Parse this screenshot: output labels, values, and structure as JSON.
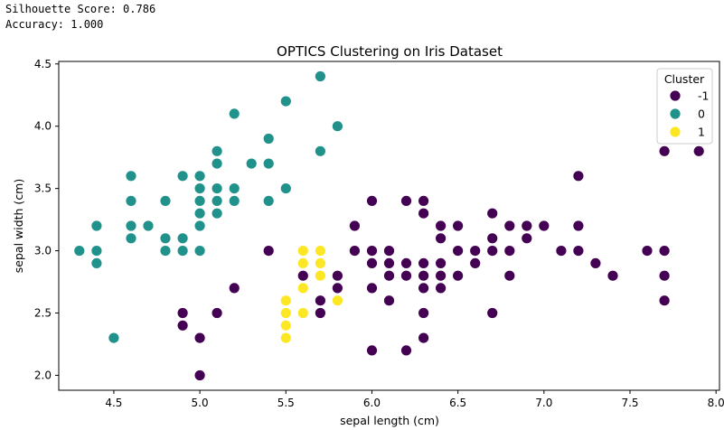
{
  "console": {
    "line1": "Silhouette Score: 0.786",
    "line2": "Accuracy: 1.000"
  },
  "chart_data": {
    "type": "scatter",
    "title": "OPTICS Clustering on Iris Dataset",
    "xlabel": "sepal length (cm)",
    "ylabel": "sepal width (cm)",
    "xlim": [
      4.18,
      8.02
    ],
    "ylim": [
      1.88,
      4.52
    ],
    "xticks": [
      "4.5",
      "5.0",
      "5.5",
      "6.0",
      "6.5",
      "7.0",
      "7.5",
      "8.0"
    ],
    "yticks": [
      "2.0",
      "2.5",
      "3.0",
      "3.5",
      "4.0",
      "4.5"
    ],
    "grid": false,
    "legend": {
      "title": "Cluster",
      "placement": "top-right"
    },
    "series": [
      {
        "name": "-1",
        "color": "#440154",
        "points": [
          [
            7.7,
            3.8
          ],
          [
            7.9,
            3.8
          ],
          [
            7.2,
            3.6
          ],
          [
            6.0,
            3.4
          ],
          [
            6.2,
            3.4
          ],
          [
            6.3,
            3.4
          ],
          [
            6.3,
            3.3
          ],
          [
            6.7,
            3.3
          ],
          [
            5.9,
            3.2
          ],
          [
            6.4,
            3.2
          ],
          [
            6.5,
            3.2
          ],
          [
            6.8,
            3.2
          ],
          [
            6.9,
            3.2
          ],
          [
            7.0,
            3.2
          ],
          [
            7.2,
            3.2
          ],
          [
            6.7,
            3.1
          ],
          [
            6.4,
            3.1
          ],
          [
            6.9,
            3.1
          ],
          [
            5.4,
            3.0
          ],
          [
            5.9,
            3.0
          ],
          [
            6.0,
            3.0
          ],
          [
            6.1,
            3.0
          ],
          [
            6.5,
            3.0
          ],
          [
            6.6,
            3.0
          ],
          [
            6.7,
            3.0
          ],
          [
            6.8,
            3.0
          ],
          [
            7.1,
            3.0
          ],
          [
            7.2,
            3.0
          ],
          [
            7.6,
            3.0
          ],
          [
            7.7,
            3.0
          ],
          [
            6.0,
            2.9
          ],
          [
            6.1,
            2.9
          ],
          [
            6.2,
            2.9
          ],
          [
            6.3,
            2.9
          ],
          [
            6.4,
            2.9
          ],
          [
            6.6,
            2.9
          ],
          [
            7.3,
            2.9
          ],
          [
            5.6,
            2.9
          ],
          [
            5.7,
            2.9
          ],
          [
            5.8,
            2.8
          ],
          [
            6.1,
            2.8
          ],
          [
            6.2,
            2.8
          ],
          [
            6.3,
            2.8
          ],
          [
            6.4,
            2.8
          ],
          [
            6.5,
            2.8
          ],
          [
            6.8,
            2.8
          ],
          [
            7.4,
            2.8
          ],
          [
            7.7,
            2.8
          ],
          [
            5.6,
            2.8
          ],
          [
            5.2,
            2.7
          ],
          [
            5.8,
            2.7
          ],
          [
            6.0,
            2.7
          ],
          [
            6.3,
            2.7
          ],
          [
            6.4,
            2.7
          ],
          [
            5.6,
            3.0
          ],
          [
            5.7,
            2.6
          ],
          [
            6.1,
            2.6
          ],
          [
            7.7,
            2.6
          ],
          [
            4.9,
            2.5
          ],
          [
            5.1,
            2.5
          ],
          [
            5.5,
            2.5
          ],
          [
            5.7,
            2.5
          ],
          [
            6.3,
            2.5
          ],
          [
            6.7,
            2.5
          ],
          [
            4.9,
            2.4
          ],
          [
            5.0,
            2.3
          ],
          [
            6.3,
            2.3
          ],
          [
            6.0,
            2.2
          ],
          [
            6.2,
            2.2
          ],
          [
            5.0,
            2.0
          ]
        ]
      },
      {
        "name": "0",
        "color": "#21918c",
        "points": [
          [
            5.7,
            4.4
          ],
          [
            5.5,
            4.2
          ],
          [
            5.2,
            4.1
          ],
          [
            5.8,
            4.0
          ],
          [
            5.4,
            3.9
          ],
          [
            5.1,
            3.8
          ],
          [
            5.7,
            3.8
          ],
          [
            5.1,
            3.7
          ],
          [
            5.3,
            3.7
          ],
          [
            5.4,
            3.7
          ],
          [
            4.6,
            3.6
          ],
          [
            4.9,
            3.6
          ],
          [
            5.0,
            3.6
          ],
          [
            5.1,
            3.5
          ],
          [
            5.2,
            3.5
          ],
          [
            5.5,
            3.5
          ],
          [
            5.0,
            3.5
          ],
          [
            4.6,
            3.4
          ],
          [
            4.8,
            3.4
          ],
          [
            5.0,
            3.4
          ],
          [
            5.1,
            3.4
          ],
          [
            5.2,
            3.4
          ],
          [
            5.4,
            3.4
          ],
          [
            5.0,
            3.3
          ],
          [
            5.1,
            3.3
          ],
          [
            4.4,
            3.2
          ],
          [
            4.6,
            3.2
          ],
          [
            4.7,
            3.2
          ],
          [
            5.0,
            3.2
          ],
          [
            4.6,
            3.1
          ],
          [
            4.8,
            3.1
          ],
          [
            4.9,
            3.1
          ],
          [
            4.3,
            3.0
          ],
          [
            4.4,
            3.0
          ],
          [
            4.8,
            3.0
          ],
          [
            4.9,
            3.0
          ],
          [
            5.0,
            3.0
          ],
          [
            4.4,
            2.9
          ],
          [
            4.5,
            2.3
          ]
        ]
      },
      {
        "name": "1",
        "color": "#fde725",
        "points": [
          [
            5.6,
            3.0
          ],
          [
            5.7,
            3.0
          ],
          [
            5.6,
            2.9
          ],
          [
            5.7,
            2.9
          ],
          [
            5.7,
            2.8
          ],
          [
            5.6,
            2.7
          ],
          [
            5.8,
            2.6
          ],
          [
            5.5,
            2.6
          ],
          [
            5.5,
            2.5
          ],
          [
            5.6,
            2.5
          ],
          [
            5.5,
            2.4
          ],
          [
            5.5,
            2.3
          ]
        ]
      }
    ]
  }
}
